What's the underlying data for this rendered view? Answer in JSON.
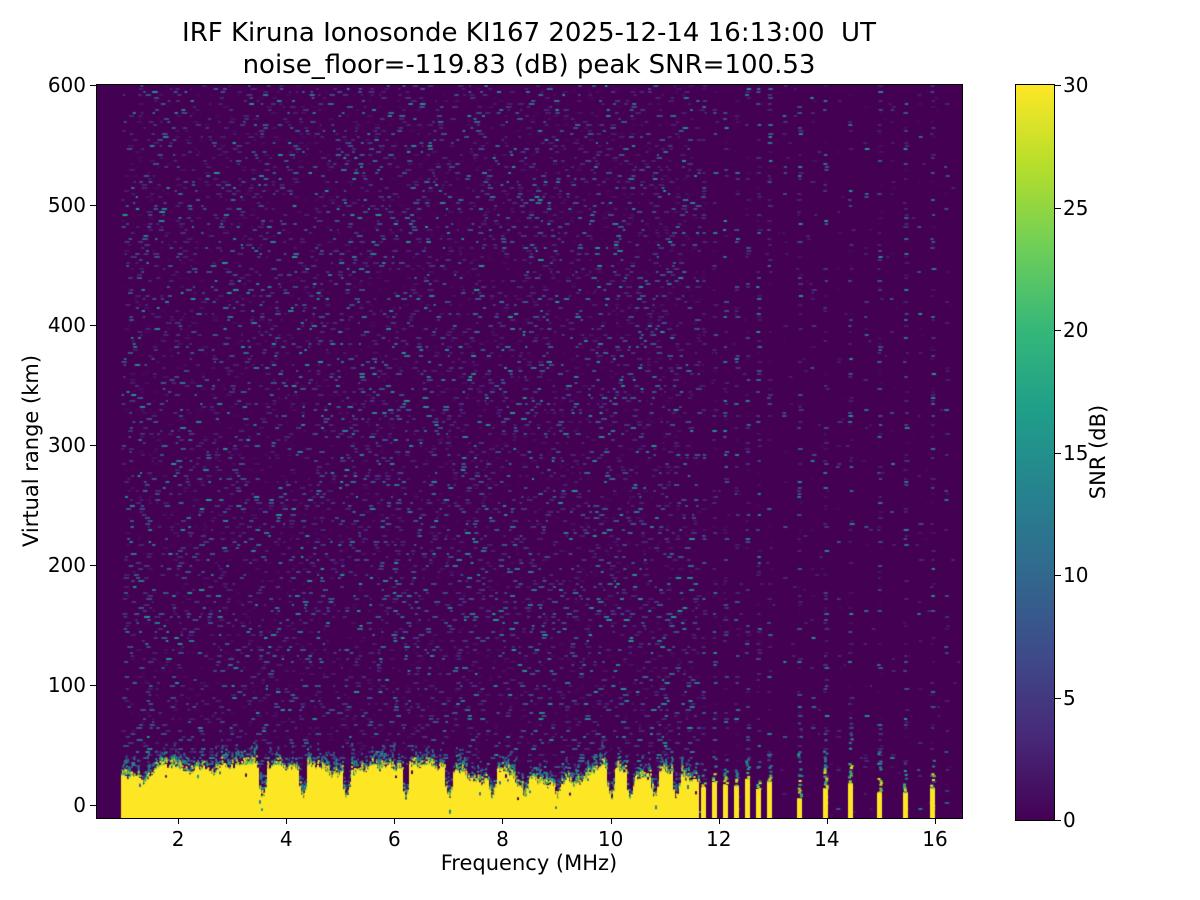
{
  "chart_data": {
    "type": "heatmap",
    "title": "IRF Kiruna Ionosonde KI167 2025-12-14 16:13:00  UT",
    "subtitle": "noise_floor=-119.83 (dB) peak SNR=100.53",
    "xlabel": "Frequency (MHz)",
    "ylabel": "Virtual range (km)",
    "colorbar_label": "SNR (dB)",
    "colormap": "viridis",
    "xlim": [
      0.5,
      16.5
    ],
    "ylim": [
      -11,
      600
    ],
    "clim": [
      0,
      30
    ],
    "x_ticks": [
      2,
      4,
      6,
      8,
      10,
      12,
      14,
      16
    ],
    "y_ticks": [
      0,
      100,
      200,
      300,
      400,
      500,
      600
    ],
    "colorbar_ticks": [
      0,
      5,
      10,
      15,
      20,
      25,
      30
    ],
    "noise_floor_db": -119.83,
    "peak_snr_db": 100.53,
    "viridis_stops": [
      "#440154",
      "#482878",
      "#3e4a89",
      "#31688e",
      "#26828e",
      "#1f9e89",
      "#35b779",
      "#6ece58",
      "#b5de2b",
      "#fde725"
    ],
    "heatmap": {
      "background": "#440154",
      "yellow": "#fde725",
      "data_start_mhz": 0.95,
      "solid_band_mhz": [
        0.95,
        11.62
      ],
      "ground_echo_top_km_range": [
        14,
        34
      ],
      "band_notch_freqs_mhz": [
        3.55,
        4.3,
        5.1,
        6.2,
        7.0,
        7.8,
        8.4,
        9.0,
        10.0,
        10.35,
        10.8,
        11.2
      ],
      "comb_start_mhz": 11.71,
      "comb_step_mhz": 0.204,
      "comb_count": 7,
      "isolated_column_freqs_mhz": [
        13.48,
        13.97,
        14.43,
        14.96,
        15.45,
        15.94
      ],
      "faint_column_freqs_mhz": [
        13.2,
        13.72,
        14.2,
        14.7,
        15.2,
        15.7,
        16.2
      ],
      "palette_faint": [
        "#46085c",
        "#471063",
        "#481b6d",
        "#482475"
      ],
      "palette_mid": [
        "#46327e",
        "#3f4889",
        "#3a538b"
      ],
      "palette_bright": [
        "#31688e",
        "#2b748e",
        "#26828e",
        "#21918c"
      ],
      "fringe_green": [
        "#fde725",
        "#d8e219",
        "#aadc32",
        "#6ece58",
        "#35b779"
      ],
      "fringe_teal": [
        "#1f9e89",
        "#26828e",
        "#2a768e"
      ],
      "fringe_blue": [
        "#31688e",
        "#3b528b",
        "#414287"
      ]
    }
  }
}
